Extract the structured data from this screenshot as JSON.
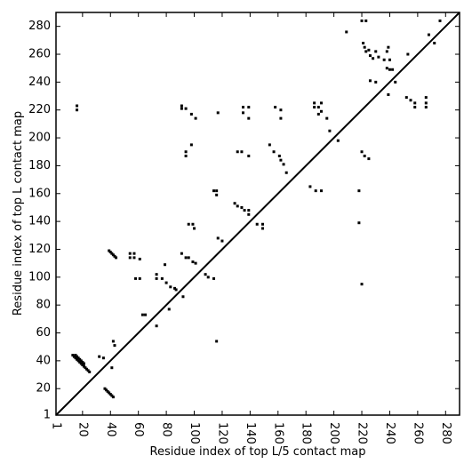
{
  "chart_data": {
    "type": "scatter",
    "x_label": "Residue index of top L/5 contact map",
    "y_label": "Residue index of top L contact map",
    "xlim": [
      1,
      290
    ],
    "ylim": [
      1,
      290
    ],
    "xticks": [
      1,
      20,
      40,
      60,
      80,
      100,
      120,
      140,
      160,
      180,
      200,
      220,
      240,
      260,
      280
    ],
    "yticks": [
      1,
      20,
      40,
      60,
      80,
      100,
      120,
      140,
      160,
      180,
      200,
      220,
      240,
      260,
      280
    ],
    "color": "#000000",
    "x": [
      13,
      14,
      15,
      16,
      17,
      18,
      19,
      20,
      21,
      22,
      23,
      24,
      25,
      15,
      16,
      17,
      18,
      19,
      20,
      21,
      16,
      16,
      32,
      35,
      36,
      37,
      38,
      39,
      40,
      41,
      42,
      41,
      42,
      43,
      39,
      40,
      41,
      42,
      43,
      44,
      54,
      57,
      54,
      57,
      61,
      58,
      61,
      63,
      65,
      73,
      73,
      73,
      77,
      79,
      80,
      83,
      86,
      87,
      82,
      92,
      91,
      94,
      96,
      99,
      101,
      96,
      99,
      100,
      98,
      94,
      94,
      91,
      91,
      94,
      98,
      101,
      108,
      110,
      114,
      114,
      116,
      116,
      117,
      120,
      116,
      117,
      129,
      131,
      134,
      136,
      139,
      139,
      131,
      134,
      139,
      135,
      139,
      135,
      139,
      145,
      149,
      149,
      154,
      157,
      161,
      162,
      164,
      166,
      158,
      162,
      162,
      183,
      187,
      191,
      186,
      186,
      189,
      191,
      189,
      191,
      195,
      197,
      203,
      209,
      218,
      218,
      220,
      222,
      225,
      220,
      220,
      223,
      221,
      222,
      223,
      225,
      226,
      228,
      230,
      232,
      236,
      240,
      239,
      238,
      238,
      240,
      242,
      244,
      239,
      230,
      226,
      253,
      252,
      255,
      258,
      258,
      266,
      266,
      266,
      268,
      272,
      276
    ],
    "values": [
      44,
      43,
      42,
      41,
      40,
      39,
      38,
      37,
      36,
      35,
      34,
      33,
      32,
      44,
      43,
      42,
      41,
      40,
      39,
      38,
      220,
      223,
      43,
      42,
      20,
      19,
      18,
      17,
      16,
      15,
      14,
      35,
      54,
      51,
      119,
      118,
      117,
      116,
      115,
      114,
      117,
      117,
      114,
      114,
      113,
      99,
      99,
      73,
      73,
      102,
      99,
      65,
      99,
      109,
      96,
      93,
      92,
      91,
      77,
      86,
      117,
      114,
      114,
      111,
      110,
      138,
      138,
      135,
      195,
      190,
      187,
      223,
      221,
      221,
      217,
      214,
      102,
      100,
      99,
      162,
      162,
      159,
      128,
      126,
      54,
      218,
      153,
      151,
      150,
      148,
      148,
      145,
      190,
      190,
      187,
      222,
      222,
      218,
      214,
      138,
      138,
      135,
      195,
      190,
      187,
      184,
      181,
      175,
      222,
      220,
      214,
      165,
      162,
      162,
      225,
      222,
      222,
      225,
      217,
      219,
      214,
      205,
      198,
      276,
      139,
      162,
      190,
      187,
      185,
      95,
      284,
      284,
      268,
      265,
      262,
      263,
      259,
      257,
      262,
      258,
      256,
      256,
      265,
      262,
      250,
      249,
      249,
      240,
      231,
      240,
      241,
      260,
      229,
      227,
      225,
      222,
      229,
      225,
      222,
      274,
      268,
      284
    ]
  }
}
